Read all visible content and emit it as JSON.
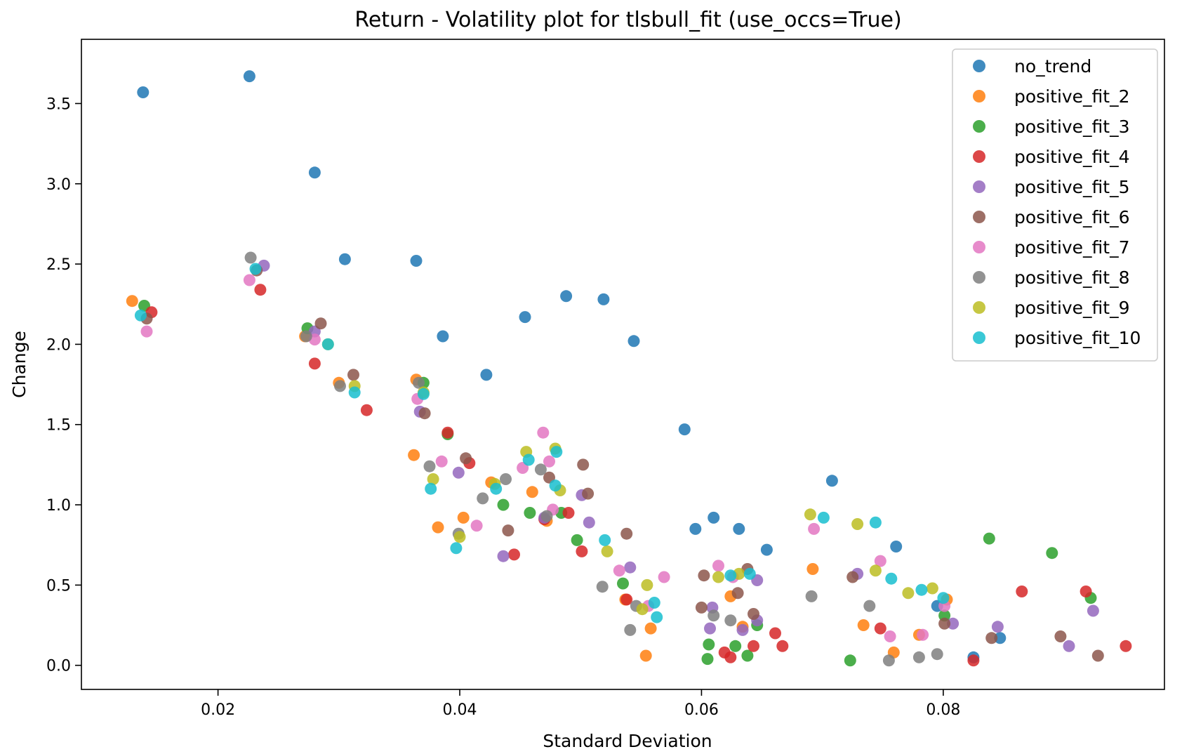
{
  "chart_data": {
    "type": "scatter",
    "title": "Return - Volatility plot for tlsbull_fit (use_occs=True)",
    "xlabel": "Standard Deviation",
    "ylabel": "Change",
    "xlim": [
      0.0087,
      0.0983
    ],
    "ylim": [
      -0.15,
      3.9
    ],
    "xticks": [
      {
        "value": 0.02,
        "label": "0.02"
      },
      {
        "value": 0.04,
        "label": "0.04"
      },
      {
        "value": 0.06,
        "label": "0.06"
      },
      {
        "value": 0.08,
        "label": "0.08"
      }
    ],
    "yticks": [
      {
        "value": 0.0,
        "label": "0.0"
      },
      {
        "value": 0.5,
        "label": "0.5"
      },
      {
        "value": 1.0,
        "label": "1.0"
      },
      {
        "value": 1.5,
        "label": "1.5"
      },
      {
        "value": 2.0,
        "label": "2.0"
      },
      {
        "value": 2.5,
        "label": "2.5"
      },
      {
        "value": 3.0,
        "label": "3.0"
      },
      {
        "value": 3.5,
        "label": "3.5"
      }
    ],
    "grid": false,
    "legend_position": "top-right",
    "series": [
      {
        "name": "no_trend",
        "color": "#1f77b4",
        "points": [
          [
            0.0138,
            3.57
          ],
          [
            0.0226,
            3.67
          ],
          [
            0.028,
            3.07
          ],
          [
            0.0305,
            2.53
          ],
          [
            0.0364,
            2.52
          ],
          [
            0.0386,
            2.05
          ],
          [
            0.0422,
            1.81
          ],
          [
            0.0454,
            2.17
          ],
          [
            0.0488,
            2.3
          ],
          [
            0.0519,
            2.28
          ],
          [
            0.0544,
            2.02
          ],
          [
            0.0586,
            1.47
          ],
          [
            0.0708,
            1.15
          ],
          [
            0.0595,
            0.85
          ],
          [
            0.061,
            0.92
          ],
          [
            0.0631,
            0.85
          ],
          [
            0.0654,
            0.72
          ],
          [
            0.0761,
            0.74
          ],
          [
            0.0795,
            0.37
          ],
          [
            0.0825,
            0.05
          ],
          [
            0.0847,
            0.17
          ]
        ]
      },
      {
        "name": "positive_fit_2",
        "color": "#ff7f0e",
        "points": [
          [
            0.0129,
            2.27
          ],
          [
            0.0272,
            2.05
          ],
          [
            0.03,
            1.76
          ],
          [
            0.0364,
            1.78
          ],
          [
            0.0362,
            1.31
          ],
          [
            0.0382,
            0.86
          ],
          [
            0.0403,
            0.92
          ],
          [
            0.0426,
            1.14
          ],
          [
            0.046,
            1.08
          ],
          [
            0.0472,
            0.9
          ],
          [
            0.0537,
            0.41
          ],
          [
            0.0558,
            0.23
          ],
          [
            0.0554,
            0.06
          ],
          [
            0.0624,
            0.43
          ],
          [
            0.0634,
            0.24
          ],
          [
            0.0692,
            0.6
          ],
          [
            0.0734,
            0.25
          ],
          [
            0.0759,
            0.08
          ],
          [
            0.078,
            0.19
          ],
          [
            0.0803,
            0.41
          ]
        ]
      },
      {
        "name": "positive_fit_3",
        "color": "#2ca02c",
        "points": [
          [
            0.0139,
            2.24
          ],
          [
            0.0274,
            2.1
          ],
          [
            0.037,
            1.76
          ],
          [
            0.039,
            1.44
          ],
          [
            0.0436,
            1.0
          ],
          [
            0.0458,
            0.95
          ],
          [
            0.0484,
            0.95
          ],
          [
            0.0497,
            0.78
          ],
          [
            0.0535,
            0.51
          ],
          [
            0.0606,
            0.13
          ],
          [
            0.0605,
            0.04
          ],
          [
            0.0628,
            0.12
          ],
          [
            0.0638,
            0.06
          ],
          [
            0.0646,
            0.25
          ],
          [
            0.0723,
            0.03
          ],
          [
            0.0801,
            0.31
          ],
          [
            0.0838,
            0.79
          ],
          [
            0.089,
            0.7
          ],
          [
            0.0922,
            0.42
          ]
        ]
      },
      {
        "name": "positive_fit_4",
        "color": "#d62728",
        "points": [
          [
            0.0145,
            2.2
          ],
          [
            0.0235,
            2.34
          ],
          [
            0.028,
            1.88
          ],
          [
            0.0323,
            1.59
          ],
          [
            0.039,
            1.45
          ],
          [
            0.0408,
            1.26
          ],
          [
            0.0445,
            0.69
          ],
          [
            0.047,
            0.91
          ],
          [
            0.049,
            0.95
          ],
          [
            0.0501,
            0.71
          ],
          [
            0.0538,
            0.41
          ],
          [
            0.0619,
            0.08
          ],
          [
            0.0624,
            0.05
          ],
          [
            0.0643,
            0.12
          ],
          [
            0.0661,
            0.2
          ],
          [
            0.0667,
            0.12
          ],
          [
            0.0748,
            0.23
          ],
          [
            0.0825,
            0.03
          ],
          [
            0.0865,
            0.46
          ],
          [
            0.0918,
            0.46
          ],
          [
            0.0951,
            0.12
          ]
        ]
      },
      {
        "name": "positive_fit_5",
        "color": "#9467bd",
        "points": [
          [
            0.0238,
            2.49
          ],
          [
            0.028,
            2.08
          ],
          [
            0.0367,
            1.58
          ],
          [
            0.0399,
            1.2
          ],
          [
            0.0436,
            0.68
          ],
          [
            0.047,
            0.92
          ],
          [
            0.0501,
            1.06
          ],
          [
            0.0507,
            0.89
          ],
          [
            0.0541,
            0.61
          ],
          [
            0.0609,
            0.36
          ],
          [
            0.0607,
            0.23
          ],
          [
            0.0634,
            0.22
          ],
          [
            0.0646,
            0.53
          ],
          [
            0.0646,
            0.28
          ],
          [
            0.0729,
            0.57
          ],
          [
            0.0808,
            0.26
          ],
          [
            0.0845,
            0.24
          ],
          [
            0.0904,
            0.12
          ],
          [
            0.0924,
            0.34
          ]
        ]
      },
      {
        "name": "positive_fit_6",
        "color": "#8c564b",
        "points": [
          [
            0.0141,
            2.16
          ],
          [
            0.0232,
            2.46
          ],
          [
            0.0285,
            2.13
          ],
          [
            0.0312,
            1.81
          ],
          [
            0.0371,
            1.57
          ],
          [
            0.0405,
            1.29
          ],
          [
            0.044,
            0.84
          ],
          [
            0.0474,
            1.17
          ],
          [
            0.0502,
            1.25
          ],
          [
            0.0506,
            1.07
          ],
          [
            0.0538,
            0.82
          ],
          [
            0.0602,
            0.56
          ],
          [
            0.06,
            0.36
          ],
          [
            0.063,
            0.45
          ],
          [
            0.0638,
            0.6
          ],
          [
            0.0643,
            0.32
          ],
          [
            0.0725,
            0.55
          ],
          [
            0.0801,
            0.26
          ],
          [
            0.084,
            0.17
          ],
          [
            0.0897,
            0.18
          ],
          [
            0.0928,
            0.06
          ]
        ]
      },
      {
        "name": "positive_fit_7",
        "color": "#e377c2",
        "points": [
          [
            0.0141,
            2.08
          ],
          [
            0.0226,
            2.4
          ],
          [
            0.028,
            2.03
          ],
          [
            0.0365,
            1.66
          ],
          [
            0.0385,
            1.27
          ],
          [
            0.0414,
            0.87
          ],
          [
            0.0452,
            1.23
          ],
          [
            0.0469,
            1.45
          ],
          [
            0.0474,
            1.27
          ],
          [
            0.0477,
            0.97
          ],
          [
            0.0532,
            0.59
          ],
          [
            0.0556,
            0.37
          ],
          [
            0.0569,
            0.55
          ],
          [
            0.0614,
            0.62
          ],
          [
            0.0626,
            0.55
          ],
          [
            0.0693,
            0.85
          ],
          [
            0.0748,
            0.65
          ],
          [
            0.0756,
            0.18
          ],
          [
            0.0783,
            0.19
          ],
          [
            0.0801,
            0.37
          ]
        ]
      },
      {
        "name": "positive_fit_8",
        "color": "#7f7f7f",
        "points": [
          [
            0.0227,
            2.54
          ],
          [
            0.0273,
            2.05
          ],
          [
            0.0301,
            1.74
          ],
          [
            0.0366,
            1.76
          ],
          [
            0.0375,
            1.24
          ],
          [
            0.0399,
            0.82
          ],
          [
            0.0419,
            1.04
          ],
          [
            0.0438,
            1.16
          ],
          [
            0.0467,
            1.22
          ],
          [
            0.0472,
            0.93
          ],
          [
            0.0518,
            0.49
          ],
          [
            0.0541,
            0.22
          ],
          [
            0.0546,
            0.37
          ],
          [
            0.061,
            0.31
          ],
          [
            0.0624,
            0.28
          ],
          [
            0.0691,
            0.43
          ],
          [
            0.0739,
            0.37
          ],
          [
            0.0755,
            0.03
          ],
          [
            0.078,
            0.05
          ],
          [
            0.0795,
            0.07
          ]
        ]
      },
      {
        "name": "positive_fit_9",
        "color": "#bcbd22",
        "points": [
          [
            0.0291,
            2.0
          ],
          [
            0.0313,
            1.74
          ],
          [
            0.037,
            1.7
          ],
          [
            0.0378,
            1.16
          ],
          [
            0.04,
            0.8
          ],
          [
            0.0429,
            1.13
          ],
          [
            0.0455,
            1.33
          ],
          [
            0.0479,
            1.35
          ],
          [
            0.0483,
            1.09
          ],
          [
            0.0522,
            0.71
          ],
          [
            0.0551,
            0.35
          ],
          [
            0.0555,
            0.5
          ],
          [
            0.0614,
            0.55
          ],
          [
            0.0631,
            0.57
          ],
          [
            0.069,
            0.94
          ],
          [
            0.0729,
            0.88
          ],
          [
            0.0744,
            0.59
          ],
          [
            0.0771,
            0.45
          ],
          [
            0.0791,
            0.48
          ]
        ]
      },
      {
        "name": "positive_fit_10",
        "color": "#17becf",
        "points": [
          [
            0.0136,
            2.18
          ],
          [
            0.0231,
            2.47
          ],
          [
            0.0291,
            2.0
          ],
          [
            0.0313,
            1.7
          ],
          [
            0.037,
            1.69
          ],
          [
            0.0376,
            1.1
          ],
          [
            0.0397,
            0.73
          ],
          [
            0.043,
            1.1
          ],
          [
            0.0457,
            1.28
          ],
          [
            0.0479,
            1.12
          ],
          [
            0.048,
            1.33
          ],
          [
            0.052,
            0.78
          ],
          [
            0.0561,
            0.39
          ],
          [
            0.0563,
            0.3
          ],
          [
            0.0624,
            0.56
          ],
          [
            0.064,
            0.57
          ],
          [
            0.0701,
            0.92
          ],
          [
            0.0744,
            0.89
          ],
          [
            0.0757,
            0.54
          ],
          [
            0.0782,
            0.47
          ],
          [
            0.08,
            0.42
          ]
        ]
      }
    ]
  }
}
